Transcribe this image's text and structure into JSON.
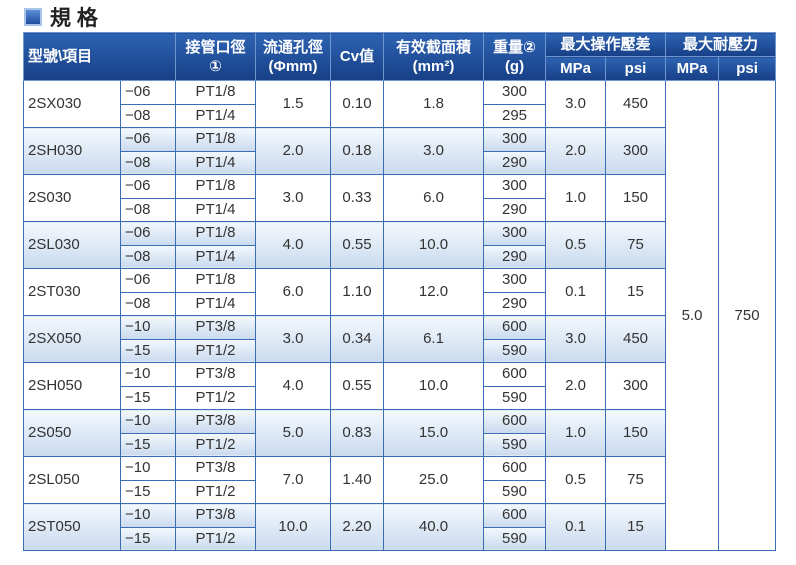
{
  "title": "規 格",
  "table": {
    "header": {
      "model_item": "型號\\項目",
      "port": [
        "接管口徑",
        "①"
      ],
      "orifice": [
        "流通孔徑",
        "(Φmm)"
      ],
      "cv": "Cv值",
      "area": [
        "有效截面積",
        "(mm²)"
      ],
      "weight": [
        "重量②",
        "(g)"
      ],
      "max_op": "最大操作壓差",
      "max_op_units": [
        "MPa",
        "psi"
      ],
      "proof": "最大耐壓力",
      "proof_units": [
        "MPa",
        "psi"
      ]
    },
    "proof": {
      "mpa": "5.0",
      "psi": "750"
    },
    "rows": [
      {
        "model": "2SX030",
        "subs": [
          {
            "suffix": "−06",
            "port": "PT1/8",
            "weight": "300"
          },
          {
            "suffix": "−08",
            "port": "PT1/4",
            "weight": "295"
          }
        ],
        "orifice": "1.5",
        "cv": "0.10",
        "area": "1.8",
        "mpa": "3.0",
        "psi": "450"
      },
      {
        "model": "2SH030",
        "subs": [
          {
            "suffix": "−06",
            "port": "PT1/8",
            "weight": "300"
          },
          {
            "suffix": "−08",
            "port": "PT1/4",
            "weight": "290"
          }
        ],
        "orifice": "2.0",
        "cv": "0.18",
        "area": "3.0",
        "mpa": "2.0",
        "psi": "300"
      },
      {
        "model": "2S030",
        "subs": [
          {
            "suffix": "−06",
            "port": "PT1/8",
            "weight": "300"
          },
          {
            "suffix": "−08",
            "port": "PT1/4",
            "weight": "290"
          }
        ],
        "orifice": "3.0",
        "cv": "0.33",
        "area": "6.0",
        "mpa": "1.0",
        "psi": "150"
      },
      {
        "model": "2SL030",
        "subs": [
          {
            "suffix": "−06",
            "port": "PT1/8",
            "weight": "300"
          },
          {
            "suffix": "−08",
            "port": "PT1/4",
            "weight": "290"
          }
        ],
        "orifice": "4.0",
        "cv": "0.55",
        "area": "10.0",
        "mpa": "0.5",
        "psi": "75"
      },
      {
        "model": "2ST030",
        "subs": [
          {
            "suffix": "−06",
            "port": "PT1/8",
            "weight": "300"
          },
          {
            "suffix": "−08",
            "port": "PT1/4",
            "weight": "290"
          }
        ],
        "orifice": "6.0",
        "cv": "1.10",
        "area": "12.0",
        "mpa": "0.1",
        "psi": "15"
      },
      {
        "model": "2SX050",
        "subs": [
          {
            "suffix": "−10",
            "port": "PT3/8",
            "weight": "600"
          },
          {
            "suffix": "−15",
            "port": "PT1/2",
            "weight": "590"
          }
        ],
        "orifice": "3.0",
        "cv": "0.34",
        "area": "6.1",
        "mpa": "3.0",
        "psi": "450"
      },
      {
        "model": "2SH050",
        "subs": [
          {
            "suffix": "−10",
            "port": "PT3/8",
            "weight": "600"
          },
          {
            "suffix": "−15",
            "port": "PT1/2",
            "weight": "590"
          }
        ],
        "orifice": "4.0",
        "cv": "0.55",
        "area": "10.0",
        "mpa": "2.0",
        "psi": "300"
      },
      {
        "model": "2S050",
        "subs": [
          {
            "suffix": "−10",
            "port": "PT3/8",
            "weight": "600"
          },
          {
            "suffix": "−15",
            "port": "PT1/2",
            "weight": "590"
          }
        ],
        "orifice": "5.0",
        "cv": "0.83",
        "area": "15.0",
        "mpa": "1.0",
        "psi": "150"
      },
      {
        "model": "2SL050",
        "subs": [
          {
            "suffix": "−10",
            "port": "PT3/8",
            "weight": "600"
          },
          {
            "suffix": "−15",
            "port": "PT1/2",
            "weight": "590"
          }
        ],
        "orifice": "7.0",
        "cv": "1.40",
        "area": "25.0",
        "mpa": "0.5",
        "psi": "75"
      },
      {
        "model": "2ST050",
        "subs": [
          {
            "suffix": "−10",
            "port": "PT3/8",
            "weight": "600"
          },
          {
            "suffix": "−15",
            "port": "PT1/2",
            "weight": "590"
          }
        ],
        "orifice": "10.0",
        "cv": "2.20",
        "area": "40.0",
        "mpa": "0.1",
        "psi": "15"
      }
    ]
  }
}
